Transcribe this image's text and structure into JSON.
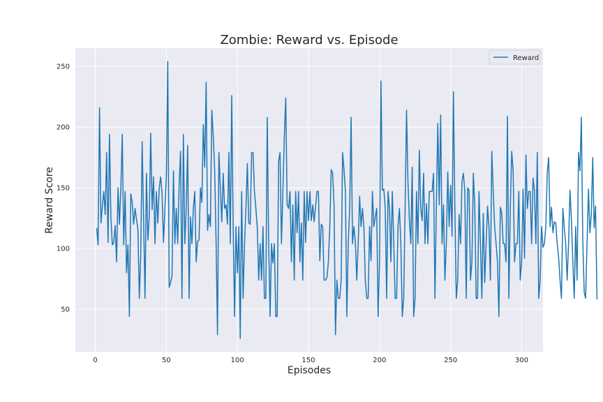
{
  "chart_data": {
    "type": "line",
    "title": "Zombie: Reward vs. Episode",
    "xlabel": "Episodes",
    "ylabel": "Reward Score",
    "xlim": [
      -14,
      315
    ],
    "ylim": [
      15,
      265
    ],
    "xticks": [
      0,
      50,
      100,
      150,
      200,
      250,
      300
    ],
    "yticks": [
      50,
      100,
      150,
      200,
      250
    ],
    "grid": true,
    "legend_position": "top-right",
    "colors": {
      "background": "#eaeaf2",
      "grid": "#ffffff",
      "line": "#1f77b4",
      "text": "#262626"
    },
    "series": [
      {
        "name": "Reward",
        "x_start": 1,
        "x_step": 1,
        "values": [
          117,
          103,
          216,
          121,
          135,
          147,
          128,
          179,
          105,
          194,
          125,
          103,
          105,
          119,
          89,
          150,
          120,
          150,
          194,
          103,
          147,
          80,
          103,
          44,
          145,
          138,
          120,
          133,
          124,
          116,
          59,
          95,
          188,
          124,
          59,
          162,
          107,
          126,
          195,
          132,
          159,
          104,
          147,
          121,
          150,
          159,
          145,
          105,
          133,
          159,
          254,
          68,
          72,
          78,
          164,
          104,
          133,
          104,
          152,
          180,
          59,
          194,
          104,
          133,
          185,
          59,
          126,
          104,
          133,
          147,
          89,
          106,
          107,
          150,
          138,
          202,
          167,
          237,
          115,
          128,
          118,
          214,
          193,
          165,
          106,
          29,
          179,
          150,
          122,
          162,
          133,
          136,
          120,
          179,
          104,
          226,
          120,
          44,
          118,
          80,
          118,
          26,
          147,
          59,
          104,
          133,
          170,
          121,
          120,
          179,
          179,
          147,
          133,
          117,
          74,
          104,
          74,
          118,
          59,
          59,
          208,
          104,
          44,
          104,
          88,
          104,
          44,
          44,
          172,
          179,
          104,
          147,
          192,
          224,
          136,
          133,
          147,
          89,
          136,
          74,
          147,
          113,
          147,
          89,
          121,
          74,
          147,
          105,
          147,
          123,
          147,
          123,
          136,
          122,
          135,
          147,
          147,
          90,
          120,
          118,
          74,
          74,
          76,
          89,
          118,
          165,
          162,
          136,
          29,
          74,
          59,
          59,
          74,
          179,
          165,
          147,
          44,
          104,
          133,
          208,
          104,
          118,
          105,
          74,
          104,
          143,
          118,
          133,
          118,
          74,
          59,
          59,
          118,
          90,
          147,
          118,
          126,
          133,
          44,
          89,
          238,
          148,
          149,
          134,
          59,
          147,
          133,
          89,
          147,
          105,
          59,
          59,
          118,
          133,
          104,
          44,
          59,
          133,
          214,
          155,
          124,
          104,
          167,
          44,
          59,
          147,
          104,
          181,
          133,
          123,
          162,
          104,
          137,
          104,
          147,
          147,
          147,
          162,
          59,
          136,
          203,
          136,
          210,
          104,
          136,
          74,
          104,
          163,
          118,
          152,
          110,
          229,
          133,
          59,
          74,
          128,
          104,
          155,
          162,
          147,
          59,
          150,
          148,
          74,
          89,
          162,
          135,
          59,
          59,
          147,
          104,
          59,
          129,
          72,
          104,
          135,
          118,
          74,
          180,
          147,
          118,
          104,
          89,
          44,
          134,
          129,
          104,
          104,
          89,
          209,
          59,
          133,
          180,
          164,
          89,
          104,
          104,
          147,
          74,
          89,
          149,
          92,
          177,
          133,
          147,
          147,
          104,
          158,
          148,
          104,
          179,
          59,
          74,
          118,
          101,
          104,
          118,
          162,
          175,
          118,
          134,
          113,
          122,
          121,
          104,
          93,
          74,
          59,
          133,
          117,
          104,
          74,
          104,
          148,
          124,
          89,
          59,
          118,
          74,
          179,
          164,
          208,
          107,
          64,
          59,
          104,
          149,
          113,
          128,
          175,
          117,
          135,
          58
        ]
      }
    ]
  }
}
